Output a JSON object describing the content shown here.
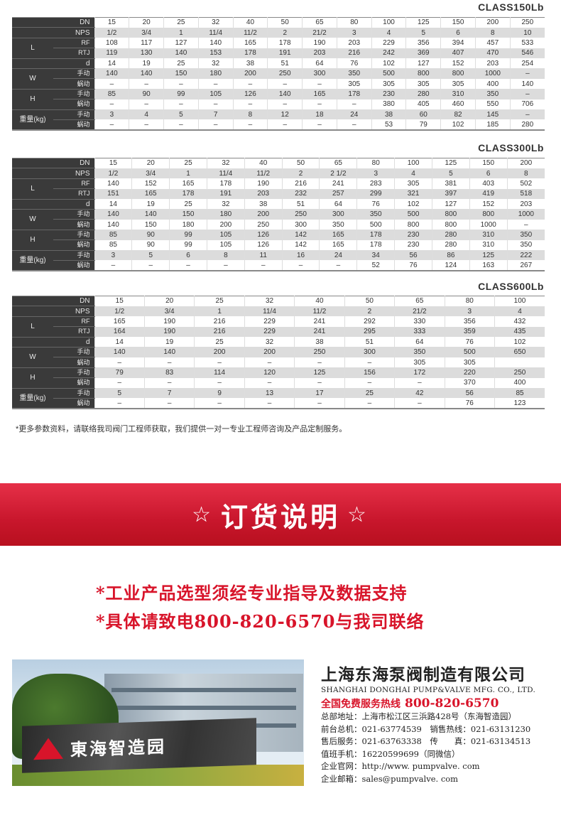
{
  "tables": [
    {
      "title": "CLASS150Lb",
      "labels": {
        "dn": "DN",
        "nps": "NPS",
        "l": "L",
        "rf": "RF",
        "rtj": "RTJ",
        "d": "d",
        "w": "W",
        "h": "H",
        "weight": "重量(kg)",
        "manual": "手动",
        "worm": "蜗动"
      },
      "rows": {
        "dn": [
          "15",
          "20",
          "25",
          "32",
          "40",
          "50",
          "65",
          "80",
          "100",
          "125",
          "150",
          "200",
          "250"
        ],
        "nps": [
          "1/2",
          "3/4",
          "1",
          "11/4",
          "11/2",
          "2",
          "21/2",
          "3",
          "4",
          "5",
          "6",
          "8",
          "10"
        ],
        "rf": [
          "108",
          "117",
          "127",
          "140",
          "165",
          "178",
          "190",
          "203",
          "229",
          "356",
          "394",
          "457",
          "533"
        ],
        "rtj": [
          "119",
          "130",
          "140",
          "153",
          "178",
          "191",
          "203",
          "216",
          "242",
          "369",
          "407",
          "470",
          "546"
        ],
        "d": [
          "14",
          "19",
          "25",
          "32",
          "38",
          "51",
          "64",
          "76",
          "102",
          "127",
          "152",
          "203",
          "254"
        ],
        "w_manual": [
          "140",
          "140",
          "150",
          "180",
          "200",
          "250",
          "300",
          "350",
          "500",
          "800",
          "800",
          "1000",
          "–"
        ],
        "w_worm": [
          "–",
          "–",
          "–",
          "–",
          "–",
          "–",
          "–",
          "305",
          "305",
          "305",
          "305",
          "400",
          "140"
        ],
        "h_manual": [
          "85",
          "90",
          "99",
          "105",
          "126",
          "140",
          "165",
          "178",
          "230",
          "280",
          "310",
          "350",
          "–"
        ],
        "h_worm": [
          "–",
          "–",
          "–",
          "–",
          "–",
          "–",
          "–",
          "–",
          "380",
          "405",
          "460",
          "550",
          "706"
        ],
        "wt_manual": [
          "3",
          "4",
          "5",
          "7",
          "8",
          "12",
          "18",
          "24",
          "38",
          "60",
          "82",
          "145",
          "–"
        ],
        "wt_worm": [
          "–",
          "–",
          "–",
          "–",
          "–",
          "–",
          "–",
          "–",
          "53",
          "79",
          "102",
          "185",
          "280"
        ]
      }
    },
    {
      "title": "CLASS300Lb",
      "labels": {
        "dn": "DN",
        "nps": "NPS",
        "l": "L",
        "rf": "RF",
        "rtj": "RTJ",
        "d": "d",
        "w": "W",
        "h": "H",
        "weight": "重量(kg)",
        "manual": "手动",
        "worm": "蜗动"
      },
      "rows": {
        "dn": [
          "15",
          "20",
          "25",
          "32",
          "40",
          "50",
          "65",
          "80",
          "100",
          "125",
          "150",
          "200"
        ],
        "nps": [
          "1/2",
          "3/4",
          "1",
          "11/4",
          "11/2",
          "2",
          "2 1/2",
          "3",
          "4",
          "5",
          "6",
          "8"
        ],
        "rf": [
          "140",
          "152",
          "165",
          "178",
          "190",
          "216",
          "241",
          "283",
          "305",
          "381",
          "403",
          "502"
        ],
        "rtj": [
          "151",
          "165",
          "178",
          "191",
          "203",
          "232",
          "257",
          "299",
          "321",
          "397",
          "419",
          "518"
        ],
        "d": [
          "14",
          "19",
          "25",
          "32",
          "38",
          "51",
          "64",
          "76",
          "102",
          "127",
          "152",
          "203"
        ],
        "w_manual": [
          "140",
          "140",
          "150",
          "180",
          "200",
          "250",
          "300",
          "350",
          "500",
          "800",
          "800",
          "1000"
        ],
        "w_worm": [
          "140",
          "150",
          "180",
          "200",
          "250",
          "300",
          "350",
          "500",
          "800",
          "800",
          "1000",
          "–"
        ],
        "h_manual": [
          "85",
          "90",
          "99",
          "105",
          "126",
          "142",
          "165",
          "178",
          "230",
          "280",
          "310",
          "350"
        ],
        "h_worm": [
          "85",
          "90",
          "99",
          "105",
          "126",
          "142",
          "165",
          "178",
          "230",
          "280",
          "310",
          "350"
        ],
        "wt_manual": [
          "3",
          "5",
          "6",
          "8",
          "11",
          "16",
          "24",
          "34",
          "56",
          "86",
          "125",
          "222"
        ],
        "wt_worm": [
          "–",
          "–",
          "–",
          "–",
          "–",
          "–",
          "–",
          "52",
          "76",
          "124",
          "163",
          "267"
        ]
      }
    },
    {
      "title": "CLASS600Lb",
      "labels": {
        "dn": "DN",
        "nps": "NPS",
        "l": "L",
        "rf": "RF",
        "rtj": "RTJ",
        "d": "d",
        "w": "W",
        "h": "H",
        "weight": "重量(kg)",
        "manual": "手动",
        "worm": "蜗动"
      },
      "rows": {
        "dn": [
          "15",
          "20",
          "25",
          "32",
          "40",
          "50",
          "65",
          "80",
          "100"
        ],
        "nps": [
          "1/2",
          "3/4",
          "1",
          "11/4",
          "11/2",
          "2",
          "21/2",
          "3",
          "4"
        ],
        "rf": [
          "165",
          "190",
          "216",
          "229",
          "241",
          "292",
          "330",
          "356",
          "432"
        ],
        "rtj": [
          "164",
          "190",
          "216",
          "229",
          "241",
          "295",
          "333",
          "359",
          "435"
        ],
        "d": [
          "14",
          "19",
          "25",
          "32",
          "38",
          "51",
          "64",
          "76",
          "102"
        ],
        "w_manual": [
          "140",
          "140",
          "200",
          "200",
          "250",
          "300",
          "350",
          "500",
          "650"
        ],
        "w_worm": [
          "–",
          "–",
          "–",
          "–",
          "–",
          "–",
          "305",
          "305",
          ""
        ],
        "h_manual": [
          "79",
          "83",
          "114",
          "120",
          "125",
          "156",
          "172",
          "220",
          "250"
        ],
        "h_worm": [
          "–",
          "–",
          "–",
          "–",
          "–",
          "–",
          "–",
          "370",
          "400"
        ],
        "wt_manual": [
          "5",
          "7",
          "9",
          "13",
          "17",
          "25",
          "42",
          "56",
          "85"
        ],
        "wt_worm": [
          "–",
          "–",
          "–",
          "–",
          "–",
          "–",
          "–",
          "76",
          "123"
        ]
      }
    }
  ],
  "note": "*更多参数资料，请联络我司阀门工程师获取，我们提供一对一专业工程师咨询及产品定制服务。",
  "banner": {
    "star": "☆",
    "title": "订货说明"
  },
  "slogans": [
    "*工业产品选型须经专业指导及数据支持",
    "*具体请致电800-820-6570与我司联络"
  ],
  "photo": {
    "sign_text": "東海智造园"
  },
  "contact": {
    "company_cn": "上海东海泵阀制造有限公司",
    "company_en": "SHANGHAI DONGHAI PUMP&VALVE MFG. CO., LTD.",
    "hotline_label": "全国免费服务热线",
    "hotline": "800-820-6570",
    "lines": [
      "总部地址：上海市松江区三浜路428号（东海智造园）",
      "前台总机：021-63774539　销售热线：021-63131230",
      "售后服务：021-63763338　传　　真：021-63134513",
      "值班手机：16220599699（同微信）",
      "企业官网：http://www. pumpvalve. com",
      "企业邮箱：sales@pumpvalve. com"
    ]
  },
  "colors": {
    "accent_red": "#d8142a",
    "label_bg": "#3a3a3a",
    "row_shade": "#dcdcdc"
  }
}
